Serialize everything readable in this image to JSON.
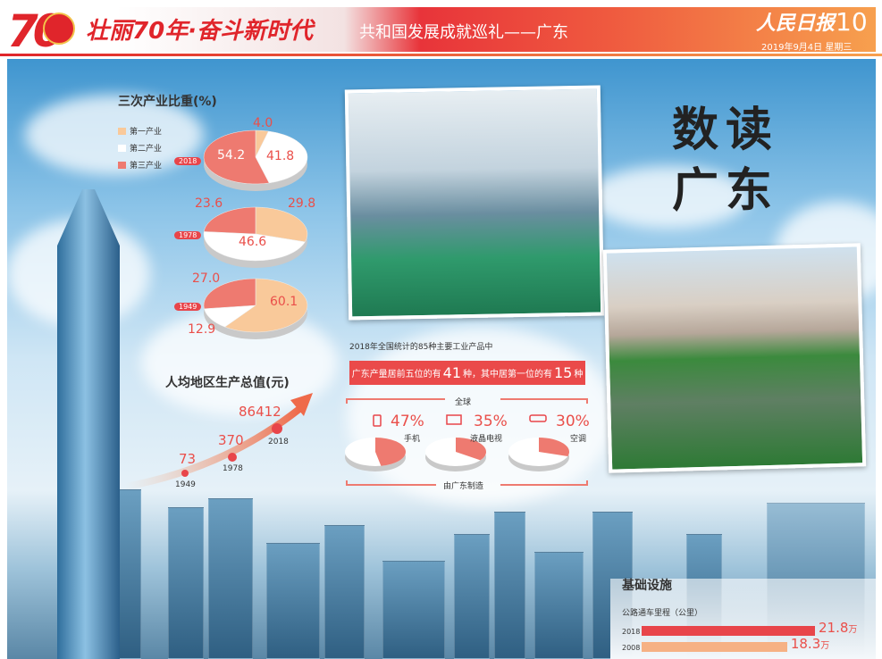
{
  "header": {
    "logo_number": "70",
    "slogan": "壮丽70年·奋斗新时代",
    "subtitle": "共和国发展成就巡礼——广东",
    "paper_name": "人民日报",
    "page_number": "10",
    "date": "2019年9月4日  星期三"
  },
  "title": {
    "line1": "数读",
    "line2": "广东"
  },
  "industry_share": {
    "title": "三次产业比重(%)",
    "legend": [
      "第一产业",
      "第二产业",
      "第三产业"
    ],
    "colors": [
      "#f9c99a",
      "#ffffff",
      "#ee7a70"
    ],
    "years": [
      {
        "year": "2018",
        "primary": "4.0",
        "secondary": "41.8",
        "tertiary": "54.2"
      },
      {
        "year": "1978",
        "primary": "29.8",
        "secondary": "46.6",
        "tertiary": "23.6"
      },
      {
        "year": "1949",
        "primary": "60.1",
        "secondary": "12.9",
        "tertiary": "27.0"
      }
    ]
  },
  "gdp_per_capita": {
    "title": "人均地区生产总值(元)",
    "points": [
      {
        "year": "1949",
        "value": "73"
      },
      {
        "year": "1978",
        "value": "370"
      },
      {
        "year": "2018",
        "value": "86412"
      }
    ]
  },
  "products": {
    "intro": "2018年全国统计的85种主要工业产品中",
    "band_a": "广东产量居前五位的有",
    "band_n1": "41",
    "band_b": "种，其中居第一位的有",
    "band_n2": "15",
    "band_c": "种",
    "top_label": "全球",
    "bottom_label": "由广东制造",
    "items": [
      {
        "icon": "phone-icon",
        "pct": "47%",
        "label": "手机",
        "share": 0.47
      },
      {
        "icon": "tv-icon",
        "pct": "35%",
        "label": "液晶电视",
        "share": 0.35
      },
      {
        "icon": "air-conditioner-icon",
        "pct": "30%",
        "label": "空调",
        "share": 0.3
      }
    ]
  },
  "infrastructure": {
    "title": "基础设施",
    "subtitle": "公路通车里程（公里）",
    "bars": [
      {
        "year": "2018",
        "value": "21.8",
        "unit": "万",
        "color": "#e8454a"
      },
      {
        "year": "2008",
        "value": "18.3",
        "unit": "万",
        "color": "#f6b184"
      }
    ],
    "max": 21.8
  }
}
